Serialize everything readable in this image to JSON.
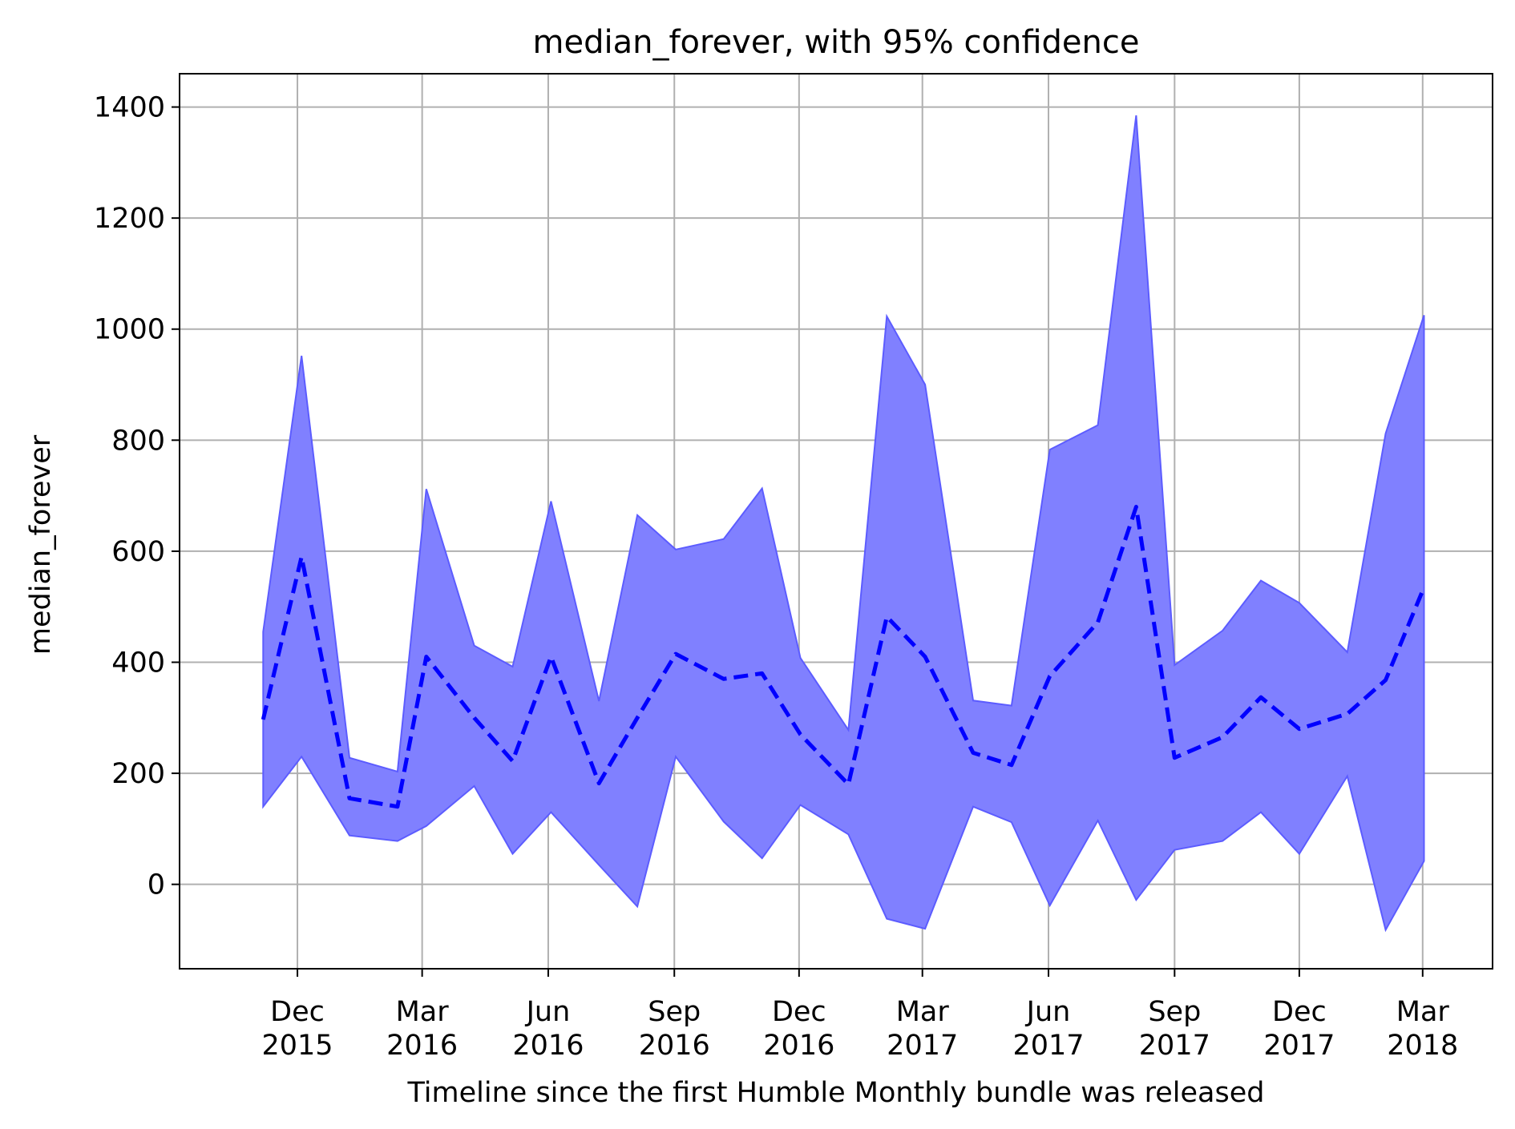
{
  "chart_data": {
    "type": "line",
    "title": "median_forever, with 95% confidence",
    "xlabel": "Timeline since the first Humble Monthly bundle was released",
    "ylabel": "median_forever",
    "x_tick_labels": [
      {
        "date": "2015-12-01",
        "month": "Dec",
        "year": "2015"
      },
      {
        "date": "2016-03-01",
        "month": "Mar",
        "year": "2016"
      },
      {
        "date": "2016-06-01",
        "month": "Jun",
        "year": "2016"
      },
      {
        "date": "2016-09-01",
        "month": "Sep",
        "year": "2016"
      },
      {
        "date": "2016-12-01",
        "month": "Dec",
        "year": "2016"
      },
      {
        "date": "2017-03-01",
        "month": "Mar",
        "year": "2017"
      },
      {
        "date": "2017-06-01",
        "month": "Jun",
        "year": "2017"
      },
      {
        "date": "2017-09-01",
        "month": "Sep",
        "year": "2017"
      },
      {
        "date": "2017-12-01",
        "month": "Dec",
        "year": "2017"
      },
      {
        "date": "2018-03-01",
        "month": "Mar",
        "year": "2018"
      }
    ],
    "y_ticks": [
      "0",
      "200",
      "400",
      "600",
      "800",
      "1000",
      "1200",
      "1400"
    ],
    "xlim": [
      "2015-09-06",
      "2018-04-21"
    ],
    "ylim": [
      -152,
      1460
    ],
    "grid": true,
    "colors": {
      "band": "#8080ff",
      "band_edge": "#5c5cff",
      "line": "#0000ff",
      "grid": "#b0b0b0",
      "axis": "#000000"
    },
    "dates": [
      "2015-11-06",
      "2015-12-04",
      "2016-01-08",
      "2016-02-12",
      "2016-03-04",
      "2016-04-08",
      "2016-05-06",
      "2016-06-03",
      "2016-07-08",
      "2016-08-05",
      "2016-09-02",
      "2016-10-07",
      "2016-11-04",
      "2016-12-02",
      "2017-01-06",
      "2017-02-03",
      "2017-03-03",
      "2017-04-07",
      "2017-05-05",
      "2017-06-02",
      "2017-07-07",
      "2017-08-04",
      "2017-09-01",
      "2017-10-06",
      "2017-11-03",
      "2017-12-01",
      "2018-01-05",
      "2018-02-02",
      "2018-03-02"
    ],
    "series": [
      {
        "values": [
          297,
          590,
          155,
          140,
          410,
          300,
          222,
          410,
          182,
          300,
          415,
          370,
          380,
          270,
          180,
          482,
          410,
          237,
          215,
          375,
          472,
          680,
          228,
          265,
          337,
          280,
          307,
          368,
          535
        ]
      }
    ],
    "confidence_band": {
      "upper": [
        455,
        952,
        228,
        203,
        712,
        430,
        392,
        690,
        330,
        665,
        603,
        622,
        713,
        408,
        278,
        1023,
        900,
        331,
        322,
        783,
        827,
        1385,
        395,
        457,
        547,
        507,
        418,
        812,
        1025
      ],
      "lower": [
        140,
        230,
        88,
        78,
        105,
        177,
        55,
        130,
        35,
        -40,
        230,
        113,
        47,
        143,
        90,
        -62,
        -80,
        140,
        112,
        -38,
        115,
        -28,
        62,
        78,
        130,
        55,
        195,
        -82,
        42
      ]
    }
  }
}
